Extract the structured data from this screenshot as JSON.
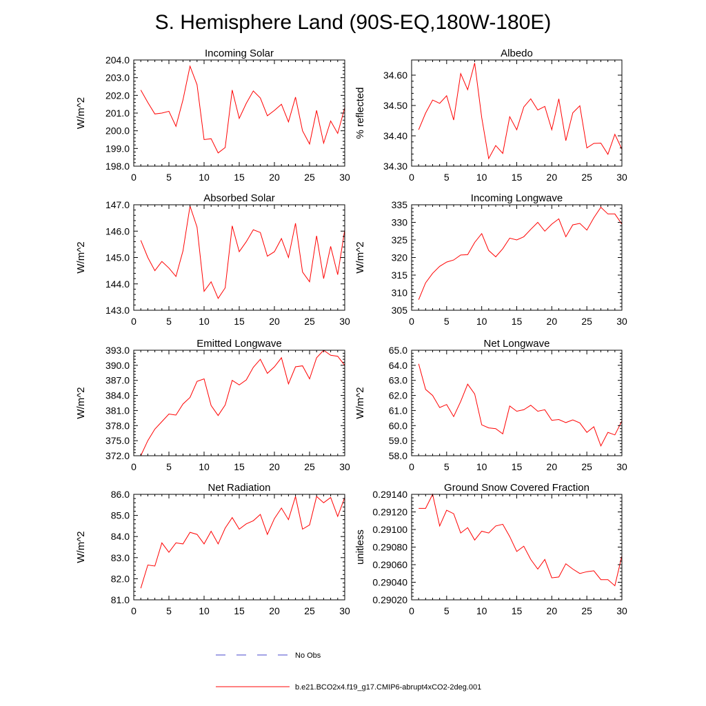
{
  "title": "S. Hemisphere Land (90S-EQ,180W-180E)",
  "legend": {
    "obs_label": "No Obs",
    "model_label": "b.e21.BCO2x4.f19_g17.CMIP6-abrupt4xCO2-2deg.001",
    "obs_color": "#4444cc",
    "model_color": "#ff0000"
  },
  "chart_data": [
    {
      "type": "line",
      "title": "Incoming Solar",
      "ylabel": "W/m^2",
      "xlim": [
        0,
        30
      ],
      "ylim": [
        198,
        204
      ],
      "xticks": [
        0,
        5,
        10,
        15,
        20,
        25,
        30
      ],
      "xtick_labels": [
        "0",
        "5",
        "10",
        "15",
        "20",
        "25",
        "30"
      ],
      "yticks": [
        198,
        199,
        200,
        201,
        202,
        203,
        204
      ],
      "ytick_labels": [
        "198.0",
        "199.0",
        "200.0",
        "201.0",
        "202.0",
        "203.0",
        "204.0"
      ],
      "x": [
        1,
        2,
        3,
        4,
        5,
        6,
        7,
        8,
        9,
        10,
        11,
        12,
        13,
        14,
        15,
        16,
        17,
        18,
        19,
        20,
        21,
        22,
        23,
        24,
        25,
        26,
        27,
        28,
        29,
        30
      ],
      "series": [
        {
          "name": "b.e21.BCO2x4.f19_g17.CMIP6-abrupt4xCO2-2deg.001",
          "values": [
            202.3,
            201.6,
            200.95,
            201.0,
            201.1,
            200.25,
            201.75,
            203.65,
            202.6,
            199.5,
            199.55,
            198.75,
            199.05,
            202.3,
            200.7,
            201.55,
            202.25,
            201.85,
            200.85,
            201.15,
            201.5,
            200.5,
            201.9,
            200.0,
            199.25,
            201.15,
            199.3,
            200.55,
            199.85,
            201.3
          ]
        }
      ]
    },
    {
      "type": "line",
      "title": "Albedo",
      "ylabel": "% reflected",
      "xlim": [
        0,
        30
      ],
      "ylim": [
        34.3,
        34.65
      ],
      "xticks": [
        0,
        5,
        10,
        15,
        20,
        25,
        30
      ],
      "xtick_labels": [
        "0",
        "5",
        "10",
        "15",
        "20",
        "25",
        "30"
      ],
      "yticks": [
        34.3,
        34.4,
        34.5,
        34.6
      ],
      "ytick_labels": [
        "34.30",
        "34.40",
        "34.50",
        "34.60"
      ],
      "x": [
        1,
        2,
        3,
        4,
        5,
        6,
        7,
        8,
        9,
        10,
        11,
        12,
        13,
        14,
        15,
        16,
        17,
        18,
        19,
        20,
        21,
        22,
        23,
        24,
        25,
        26,
        27,
        28,
        29,
        30
      ],
      "series": [
        {
          "name": "b.e21.BCO2x4.f19_g17.CMIP6-abrupt4xCO2-2deg.001",
          "values": [
            34.42,
            34.475,
            34.518,
            34.507,
            34.532,
            34.452,
            34.605,
            34.552,
            34.64,
            34.46,
            34.325,
            34.368,
            34.342,
            34.463,
            34.42,
            34.495,
            34.522,
            34.485,
            34.497,
            34.42,
            34.522,
            34.384,
            34.476,
            34.499,
            34.36,
            34.375,
            34.376,
            34.339,
            34.405,
            34.356
          ]
        }
      ]
    },
    {
      "type": "line",
      "title": "Absorbed Solar",
      "ylabel": "W/m^2",
      "xlim": [
        0,
        30
      ],
      "ylim": [
        143,
        147
      ],
      "xticks": [
        0,
        5,
        10,
        15,
        20,
        25,
        30
      ],
      "xtick_labels": [
        "0",
        "5",
        "10",
        "15",
        "20",
        "25",
        "30"
      ],
      "yticks": [
        143,
        144,
        145,
        146,
        147
      ],
      "ytick_labels": [
        "143.0",
        "144.0",
        "145.0",
        "146.0",
        "147.0"
      ],
      "x": [
        1,
        2,
        3,
        4,
        5,
        6,
        7,
        8,
        9,
        10,
        11,
        12,
        13,
        14,
        15,
        16,
        17,
        18,
        19,
        20,
        21,
        22,
        23,
        24,
        25,
        26,
        27,
        28,
        29,
        30
      ],
      "series": [
        {
          "name": "b.e21.BCO2x4.f19_g17.CMIP6-abrupt4xCO2-2deg.001",
          "values": [
            145.65,
            145.0,
            144.5,
            144.85,
            144.6,
            144.28,
            145.25,
            146.95,
            146.15,
            143.72,
            144.08,
            143.45,
            143.85,
            146.2,
            145.22,
            145.6,
            146.05,
            145.95,
            145.05,
            145.22,
            145.72,
            145.0,
            146.3,
            144.45,
            144.08,
            145.82,
            144.2,
            145.42,
            144.35,
            146.05
          ]
        }
      ]
    },
    {
      "type": "line",
      "title": "Incoming Longwave",
      "ylabel": "W/m^2",
      "xlim": [
        0,
        30
      ],
      "ylim": [
        305,
        335
      ],
      "xticks": [
        0,
        5,
        10,
        15,
        20,
        25,
        30
      ],
      "xtick_labels": [
        "0",
        "5",
        "10",
        "15",
        "20",
        "25",
        "30"
      ],
      "yticks": [
        305,
        310,
        315,
        320,
        325,
        330,
        335
      ],
      "ytick_labels": [
        "305",
        "310",
        "315",
        "320",
        "325",
        "330",
        "335"
      ],
      "x": [
        1,
        2,
        3,
        4,
        5,
        6,
        7,
        8,
        9,
        10,
        11,
        12,
        13,
        14,
        15,
        16,
        17,
        18,
        19,
        20,
        21,
        22,
        23,
        24,
        25,
        26,
        27,
        28,
        29,
        30
      ],
      "series": [
        {
          "name": "b.e21.BCO2x4.f19_g17.CMIP6-abrupt4xCO2-2deg.001",
          "values": [
            308.0,
            312.8,
            315.5,
            317.5,
            318.7,
            319.3,
            320.7,
            320.8,
            324.3,
            326.8,
            322.0,
            320.2,
            322.5,
            325.5,
            325.0,
            325.9,
            328.0,
            330.0,
            327.5,
            329.5,
            331.0,
            325.9,
            329.3,
            329.7,
            327.8,
            331.3,
            334.3,
            332.4,
            332.4,
            329.5
          ]
        }
      ]
    },
    {
      "type": "line",
      "title": "Emitted Longwave",
      "ylabel": "W/m^2",
      "xlim": [
        0,
        30
      ],
      "ylim": [
        372,
        393
      ],
      "xticks": [
        0,
        5,
        10,
        15,
        20,
        25,
        30
      ],
      "xtick_labels": [
        "0",
        "5",
        "10",
        "15",
        "20",
        "25",
        "30"
      ],
      "yticks": [
        372,
        375,
        378,
        381,
        384,
        387,
        390,
        393
      ],
      "ytick_labels": [
        "372.0",
        "375.0",
        "378.0",
        "381.0",
        "384.0",
        "387.0",
        "390.0",
        "393.0"
      ],
      "x": [
        1,
        2,
        3,
        4,
        5,
        6,
        7,
        8,
        9,
        10,
        11,
        12,
        13,
        14,
        15,
        16,
        17,
        18,
        19,
        20,
        21,
        22,
        23,
        24,
        25,
        26,
        27,
        28,
        29,
        30
      ],
      "series": [
        {
          "name": "b.e21.BCO2x4.f19_g17.CMIP6-abrupt4xCO2-2deg.001",
          "values": [
            372.0,
            375.0,
            377.3,
            378.8,
            380.3,
            380.1,
            382.3,
            383.6,
            386.8,
            387.3,
            382.0,
            380.0,
            382.1,
            387.0,
            386.1,
            387.1,
            389.6,
            391.2,
            388.4,
            389.7,
            391.5,
            386.3,
            389.7,
            389.9,
            387.3,
            391.5,
            393.0,
            392.0,
            391.8,
            390.0
          ]
        }
      ]
    },
    {
      "type": "line",
      "title": "Net Longwave",
      "ylabel": "W/m^2",
      "xlim": [
        0,
        30
      ],
      "ylim": [
        58,
        65
      ],
      "xticks": [
        0,
        5,
        10,
        15,
        20,
        25,
        30
      ],
      "xtick_labels": [
        "0",
        "5",
        "10",
        "15",
        "20",
        "25",
        "30"
      ],
      "yticks": [
        58,
        59,
        60,
        61,
        62,
        63,
        64,
        65
      ],
      "ytick_labels": [
        "58.0",
        "59.0",
        "60.0",
        "61.0",
        "62.0",
        "63.0",
        "64.0",
        "65.0"
      ],
      "x": [
        1,
        2,
        3,
        4,
        5,
        6,
        7,
        8,
        9,
        10,
        11,
        12,
        13,
        14,
        15,
        16,
        17,
        18,
        19,
        20,
        21,
        22,
        23,
        24,
        25,
        26,
        27,
        28,
        29,
        30
      ],
      "series": [
        {
          "name": "b.e21.BCO2x4.f19_g17.CMIP6-abrupt4xCO2-2deg.001",
          "values": [
            64.1,
            62.4,
            62.0,
            61.2,
            61.4,
            60.6,
            61.6,
            62.75,
            62.1,
            60.05,
            59.85,
            59.8,
            59.45,
            61.3,
            60.95,
            61.05,
            61.35,
            60.95,
            61.05,
            60.35,
            60.4,
            60.2,
            60.38,
            60.18,
            59.55,
            59.92,
            58.65,
            59.55,
            59.38,
            60.3
          ]
        }
      ]
    },
    {
      "type": "line",
      "title": "Net Radiation",
      "ylabel": "W/m^2",
      "xlim": [
        0,
        30
      ],
      "ylim": [
        81,
        86
      ],
      "xticks": [
        0,
        5,
        10,
        15,
        20,
        25,
        30
      ],
      "xtick_labels": [
        "0",
        "5",
        "10",
        "15",
        "20",
        "25",
        "30"
      ],
      "yticks": [
        81,
        82,
        83,
        84,
        85,
        86
      ],
      "ytick_labels": [
        "81.0",
        "82.0",
        "83.0",
        "84.0",
        "85.0",
        "86.0"
      ],
      "x": [
        1,
        2,
        3,
        4,
        5,
        6,
        7,
        8,
        9,
        10,
        11,
        12,
        13,
        14,
        15,
        16,
        17,
        18,
        19,
        20,
        21,
        22,
        23,
        24,
        25,
        26,
        27,
        28,
        29,
        30
      ],
      "series": [
        {
          "name": "b.e21.BCO2x4.f19_g17.CMIP6-abrupt4xCO2-2deg.001",
          "values": [
            81.55,
            82.65,
            82.6,
            83.7,
            83.25,
            83.7,
            83.65,
            84.2,
            84.1,
            83.65,
            84.25,
            83.65,
            84.4,
            84.9,
            84.35,
            84.6,
            84.75,
            85.05,
            84.1,
            84.85,
            85.35,
            84.8,
            85.9,
            84.35,
            84.55,
            85.9,
            85.6,
            85.85,
            84.95,
            85.85
          ]
        }
      ]
    },
    {
      "type": "line",
      "title": "Ground Snow Covered Fraction",
      "ylabel": "unitless",
      "xlim": [
        0,
        30
      ],
      "ylim": [
        0.2902,
        0.2914
      ],
      "xticks": [
        0,
        5,
        10,
        15,
        20,
        25,
        30
      ],
      "xtick_labels": [
        "0",
        "5",
        "10",
        "15",
        "20",
        "25",
        "30"
      ],
      "yticks": [
        0.2902,
        0.2904,
        0.2906,
        0.2908,
        0.291,
        0.2912,
        0.2914
      ],
      "ytick_labels": [
        "0.29020",
        "0.29040",
        "0.29060",
        "0.29080",
        "0.29100",
        "0.29120",
        "0.29140"
      ],
      "x": [
        1,
        2,
        3,
        4,
        5,
        6,
        7,
        8,
        9,
        10,
        11,
        12,
        13,
        14,
        15,
        16,
        17,
        18,
        19,
        20,
        21,
        22,
        23,
        24,
        25,
        26,
        27,
        28,
        29,
        30
      ],
      "series": [
        {
          "name": "b.e21.BCO2x4.f19_g17.CMIP6-abrupt4xCO2-2deg.001",
          "values": [
            0.29124,
            0.29124,
            0.2914,
            0.29104,
            0.29122,
            0.29118,
            0.29096,
            0.29102,
            0.29088,
            0.29098,
            0.29096,
            0.29104,
            0.29106,
            0.29092,
            0.29075,
            0.29081,
            0.29066,
            0.29055,
            0.29066,
            0.29045,
            0.29046,
            0.29061,
            0.29055,
            0.2905,
            0.29052,
            0.29053,
            0.29043,
            0.29043,
            0.29036,
            0.2907
          ]
        }
      ]
    }
  ]
}
